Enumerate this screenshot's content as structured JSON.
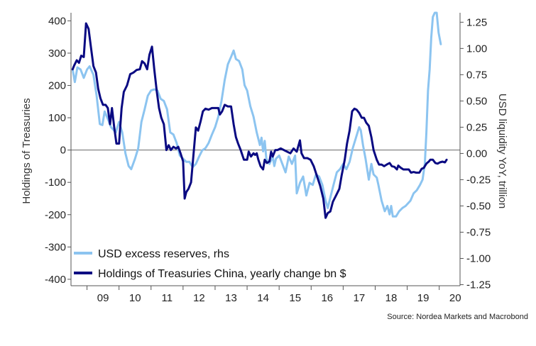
{
  "chart_data": {
    "type": "line",
    "title": "",
    "ylabel_left": "Holdings of Treasuries",
    "ylabel_right": "USD liquidity YoY, trillion",
    "y_left_range": [
      -420,
      425
    ],
    "y_right_range": [
      -1.26,
      1.34
    ],
    "x_range": [
      2008.5,
      2020.65
    ],
    "left_ticks": [
      400,
      300,
      200,
      100,
      0,
      -100,
      -200,
      -300,
      -400
    ],
    "left_tick_labels": [
      "400",
      "300",
      "200",
      "100",
      "0",
      "-100",
      "-200",
      "-300",
      "-400"
    ],
    "right_ticks": [
      1.25,
      1.0,
      0.75,
      0.5,
      0.25,
      0.0,
      -0.25,
      -0.5,
      -0.75,
      -1.0,
      -1.25
    ],
    "right_tick_labels": [
      "1.25",
      "1.00",
      "0.75",
      "0.50",
      "0.25",
      "0.00",
      "-0.25",
      "-0.50",
      "-0.75",
      "-1.00",
      "-1.25"
    ],
    "x_categories": [
      "09",
      "10",
      "11",
      "12",
      "13",
      "14",
      "15",
      "16",
      "17",
      "18",
      "19",
      "20"
    ],
    "legend_position": "bottom-left",
    "source": "Source: Nordea Markets and Macrobond",
    "series": [
      {
        "name": "USD excess reserves, rhs",
        "axis": "right",
        "color": "#8cc4f0",
        "points": [
          [
            2008.55,
            0.8
          ],
          [
            2008.62,
            0.68
          ],
          [
            2008.7,
            0.82
          ],
          [
            2008.8,
            0.8
          ],
          [
            2008.9,
            0.72
          ],
          [
            2009.0,
            0.8
          ],
          [
            2009.08,
            0.83
          ],
          [
            2009.2,
            0.75
          ],
          [
            2009.3,
            0.55
          ],
          [
            2009.4,
            0.28
          ],
          [
            2009.48,
            0.27
          ],
          [
            2009.55,
            0.4
          ],
          [
            2009.65,
            0.33
          ],
          [
            2009.75,
            0.25
          ],
          [
            2009.9,
            0.2
          ],
          [
            2010.0,
            0.3
          ],
          [
            2010.1,
            0.2
          ],
          [
            2010.2,
            0.0
          ],
          [
            2010.3,
            -0.12
          ],
          [
            2010.38,
            -0.15
          ],
          [
            2010.5,
            -0.05
          ],
          [
            2010.6,
            0.05
          ],
          [
            2010.7,
            0.3
          ],
          [
            2010.8,
            0.42
          ],
          [
            2010.9,
            0.55
          ],
          [
            2011.0,
            0.6
          ],
          [
            2011.1,
            0.61
          ],
          [
            2011.2,
            0.6
          ],
          [
            2011.3,
            0.52
          ],
          [
            2011.4,
            0.5
          ],
          [
            2011.5,
            0.42
          ],
          [
            2011.6,
            0.2
          ],
          [
            2011.7,
            0.18
          ],
          [
            2011.8,
            0.1
          ],
          [
            2011.9,
            -0.02
          ],
          [
            2012.0,
            -0.05
          ],
          [
            2012.1,
            -0.08
          ],
          [
            2012.2,
            -0.08
          ],
          [
            2012.3,
            -0.13
          ],
          [
            2012.4,
            -0.1
          ],
          [
            2012.5,
            -0.03
          ],
          [
            2012.6,
            0.03
          ],
          [
            2012.7,
            0.05
          ],
          [
            2012.8,
            0.1
          ],
          [
            2012.9,
            0.18
          ],
          [
            2013.0,
            0.25
          ],
          [
            2013.1,
            0.35
          ],
          [
            2013.2,
            0.5
          ],
          [
            2013.3,
            0.7
          ],
          [
            2013.4,
            0.85
          ],
          [
            2013.5,
            0.92
          ],
          [
            2013.58,
            0.98
          ],
          [
            2013.65,
            0.9
          ],
          [
            2013.75,
            0.88
          ],
          [
            2013.85,
            0.8
          ],
          [
            2013.92,
            0.65
          ],
          [
            2014.0,
            0.6
          ],
          [
            2014.1,
            0.45
          ],
          [
            2014.2,
            0.35
          ],
          [
            2014.3,
            0.2
          ],
          [
            2014.4,
            0.08
          ],
          [
            2014.45,
            0.15
          ],
          [
            2014.5,
            0.02
          ],
          [
            2014.55,
            0.12
          ],
          [
            2014.6,
            -0.05
          ],
          [
            2014.7,
            -0.1
          ],
          [
            2014.8,
            -0.03
          ],
          [
            2014.85,
            -0.12
          ],
          [
            2014.9,
            -0.05
          ],
          [
            2015.0,
            -0.02
          ],
          [
            2015.1,
            -0.1
          ],
          [
            2015.2,
            -0.18
          ],
          [
            2015.3,
            -0.03
          ],
          [
            2015.4,
            -0.1
          ],
          [
            2015.5,
            -0.02
          ],
          [
            2015.55,
            -0.38
          ],
          [
            2015.65,
            -0.28
          ],
          [
            2015.75,
            -0.22
          ],
          [
            2015.85,
            -0.4
          ],
          [
            2015.95,
            -0.28
          ],
          [
            2016.05,
            -0.3
          ],
          [
            2016.15,
            -0.2
          ],
          [
            2016.25,
            -0.22
          ],
          [
            2016.35,
            -0.3
          ],
          [
            2016.45,
            -0.45
          ],
          [
            2016.52,
            -0.52
          ],
          [
            2016.6,
            -0.42
          ],
          [
            2016.7,
            -0.3
          ],
          [
            2016.8,
            -0.18
          ],
          [
            2016.9,
            -0.15
          ],
          [
            2017.0,
            -0.1
          ],
          [
            2017.1,
            -0.15
          ],
          [
            2017.2,
            -0.08
          ],
          [
            2017.3,
            0.05
          ],
          [
            2017.4,
            0.15
          ],
          [
            2017.5,
            0.25
          ],
          [
            2017.55,
            0.22
          ],
          [
            2017.62,
            0.08
          ],
          [
            2017.7,
            -0.05
          ],
          [
            2017.8,
            -0.25
          ],
          [
            2017.88,
            -0.1
          ],
          [
            2017.95,
            -0.2
          ],
          [
            2018.05,
            -0.23
          ],
          [
            2018.1,
            -0.3
          ],
          [
            2018.2,
            -0.45
          ],
          [
            2018.3,
            -0.55
          ],
          [
            2018.38,
            -0.5
          ],
          [
            2018.45,
            -0.58
          ],
          [
            2018.5,
            -0.5
          ],
          [
            2018.55,
            -0.6
          ],
          [
            2018.65,
            -0.6
          ],
          [
            2018.75,
            -0.55
          ],
          [
            2018.85,
            -0.52
          ],
          [
            2018.95,
            -0.5
          ],
          [
            2019.1,
            -0.45
          ],
          [
            2019.2,
            -0.38
          ],
          [
            2019.3,
            -0.35
          ],
          [
            2019.4,
            -0.3
          ],
          [
            2019.48,
            -0.25
          ],
          [
            2019.55,
            -0.1
          ],
          [
            2019.6,
            0.2
          ],
          [
            2019.65,
            0.6
          ],
          [
            2019.7,
            0.8
          ],
          [
            2019.75,
            1.1
          ],
          [
            2019.8,
            1.3
          ],
          [
            2019.86,
            1.34
          ],
          [
            2019.92,
            1.34
          ],
          [
            2019.98,
            1.15
          ],
          [
            2020.05,
            1.04
          ]
        ]
      },
      {
        "name": "Holdings of Treasuries China, yearly change bn $",
        "axis": "left",
        "color": "#0a0a82",
        "points": [
          [
            2008.55,
            250
          ],
          [
            2008.6,
            262
          ],
          [
            2008.68,
            278
          ],
          [
            2008.75,
            270
          ],
          [
            2008.82,
            292
          ],
          [
            2008.9,
            288
          ],
          [
            2008.97,
            392
          ],
          [
            2009.05,
            375
          ],
          [
            2009.12,
            320
          ],
          [
            2009.2,
            260
          ],
          [
            2009.28,
            240
          ],
          [
            2009.35,
            190
          ],
          [
            2009.42,
            160
          ],
          [
            2009.5,
            140
          ],
          [
            2009.58,
            140
          ],
          [
            2009.65,
            130
          ],
          [
            2009.72,
            80
          ],
          [
            2009.78,
            130
          ],
          [
            2009.85,
            70
          ],
          [
            2009.92,
            20
          ],
          [
            2010.0,
            20
          ],
          [
            2010.08,
            130
          ],
          [
            2010.15,
            180
          ],
          [
            2010.25,
            200
          ],
          [
            2010.35,
            235
          ],
          [
            2010.45,
            240
          ],
          [
            2010.55,
            248
          ],
          [
            2010.65,
            250
          ],
          [
            2010.72,
            275
          ],
          [
            2010.8,
            268
          ],
          [
            2010.88,
            250
          ],
          [
            2010.95,
            295
          ],
          [
            2011.03,
            320
          ],
          [
            2011.1,
            250
          ],
          [
            2011.18,
            180
          ],
          [
            2011.25,
            130
          ],
          [
            2011.32,
            100
          ],
          [
            2011.4,
            80
          ],
          [
            2011.48,
            0
          ],
          [
            2011.55,
            15
          ],
          [
            2011.62,
            0
          ],
          [
            2011.7,
            10
          ],
          [
            2011.78,
            5
          ],
          [
            2011.85,
            10
          ],
          [
            2011.92,
            -10
          ],
          [
            2012.0,
            -35
          ],
          [
            2012.05,
            -150
          ],
          [
            2012.1,
            -130
          ],
          [
            2012.17,
            -120
          ],
          [
            2012.25,
            -100
          ],
          [
            2012.32,
            -20
          ],
          [
            2012.4,
            70
          ],
          [
            2012.47,
            60
          ],
          [
            2012.55,
            90
          ],
          [
            2012.62,
            120
          ],
          [
            2012.7,
            128
          ],
          [
            2012.8,
            125
          ],
          [
            2012.9,
            130
          ],
          [
            2013.0,
            130
          ],
          [
            2013.1,
            130
          ],
          [
            2013.15,
            110
          ],
          [
            2013.22,
            120
          ],
          [
            2013.3,
            140
          ],
          [
            2013.4,
            135
          ],
          [
            2013.5,
            135
          ],
          [
            2013.58,
            80
          ],
          [
            2013.65,
            40
          ],
          [
            2013.72,
            20
          ],
          [
            2013.8,
            0
          ],
          [
            2013.9,
            -30
          ],
          [
            2014.0,
            -30
          ],
          [
            2014.05,
            -5
          ],
          [
            2014.12,
            -20
          ],
          [
            2014.2,
            -10
          ],
          [
            2014.25,
            -15
          ],
          [
            2014.3,
            -10
          ],
          [
            2014.35,
            -30
          ],
          [
            2014.42,
            -50
          ],
          [
            2014.5,
            -60
          ],
          [
            2014.55,
            -30
          ],
          [
            2014.62,
            -40
          ],
          [
            2014.7,
            -35
          ],
          [
            2014.75,
            -5
          ],
          [
            2014.8,
            -20
          ],
          [
            2014.88,
            0
          ],
          [
            2014.95,
            0
          ],
          [
            2015.05,
            5
          ],
          [
            2015.15,
            0
          ],
          [
            2015.25,
            -5
          ],
          [
            2015.35,
            -10
          ],
          [
            2015.45,
            5
          ],
          [
            2015.55,
            -5
          ],
          [
            2015.65,
            30
          ],
          [
            2015.7,
            -10
          ],
          [
            2015.78,
            -25
          ],
          [
            2015.88,
            -25
          ],
          [
            2015.98,
            -30
          ],
          [
            2016.08,
            -50
          ],
          [
            2016.18,
            -80
          ],
          [
            2016.28,
            -110
          ],
          [
            2016.38,
            -150
          ],
          [
            2016.45,
            -210
          ],
          [
            2016.52,
            -195
          ],
          [
            2016.6,
            -190
          ],
          [
            2016.68,
            -160
          ],
          [
            2016.78,
            -140
          ],
          [
            2016.88,
            -120
          ],
          [
            2016.95,
            -80
          ],
          [
            2017.05,
            -30
          ],
          [
            2017.12,
            20
          ],
          [
            2017.2,
            60
          ],
          [
            2017.28,
            120
          ],
          [
            2017.35,
            128
          ],
          [
            2017.42,
            125
          ],
          [
            2017.5,
            115
          ],
          [
            2017.58,
            100
          ],
          [
            2017.65,
            100
          ],
          [
            2017.72,
            85
          ],
          [
            2017.8,
            75
          ],
          [
            2017.88,
            40
          ],
          [
            2017.95,
            0
          ],
          [
            2018.05,
            -30
          ],
          [
            2018.12,
            -45
          ],
          [
            2018.2,
            -45
          ],
          [
            2018.28,
            -50
          ],
          [
            2018.36,
            -45
          ],
          [
            2018.45,
            -40
          ],
          [
            2018.52,
            -50
          ],
          [
            2018.6,
            -52
          ],
          [
            2018.68,
            -60
          ],
          [
            2018.72,
            -48
          ],
          [
            2018.8,
            -55
          ],
          [
            2018.88,
            -60
          ],
          [
            2018.95,
            -60
          ],
          [
            2019.05,
            -60
          ],
          [
            2019.12,
            -70
          ],
          [
            2019.2,
            -68
          ],
          [
            2019.28,
            -70
          ],
          [
            2019.38,
            -70
          ],
          [
            2019.45,
            -58
          ],
          [
            2019.52,
            -55
          ],
          [
            2019.6,
            -42
          ],
          [
            2019.68,
            -35
          ],
          [
            2019.72,
            -30
          ],
          [
            2019.8,
            -30
          ],
          [
            2019.88,
            -40
          ],
          [
            2019.95,
            -42
          ],
          [
            2020.02,
            -38
          ],
          [
            2020.1,
            -36
          ],
          [
            2020.18,
            -38
          ],
          [
            2020.23,
            -30
          ]
        ]
      }
    ]
  }
}
